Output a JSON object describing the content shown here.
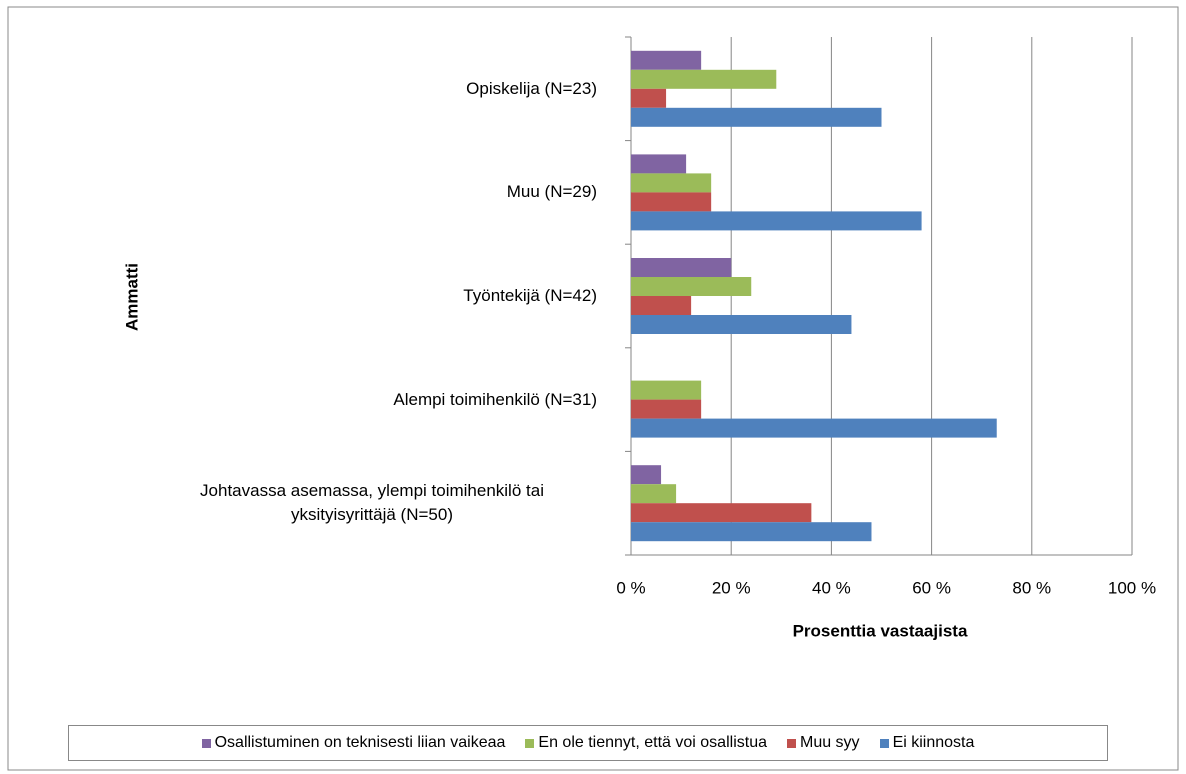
{
  "chart_data": {
    "type": "hbar",
    "y_label": "Ammatti",
    "x_label": "Prosenttia vastaajista",
    "categories": [
      "Opiskelija (N=23)",
      "Muu (N=29)",
      "Työntekijä (N=42)",
      "Alempi toimihenkilö (N=31)",
      "Johtavassa asemassa, ylempi toimihenkilö tai yksityisyrittäjä (N=50)"
    ],
    "series": [
      {
        "name": "Osallistuminen on teknisesti liian vaikeaa",
        "color": "#8064a2",
        "values": [
          14,
          11,
          20,
          0,
          6
        ]
      },
      {
        "name": "En ole tiennyt, että voi osallistua",
        "color": "#9bbb59",
        "values": [
          29,
          16,
          24,
          14,
          9
        ]
      },
      {
        "name": "Muu syy",
        "color": "#c0504d",
        "values": [
          7,
          16,
          12,
          14,
          36
        ]
      },
      {
        "name": "Ei kiinnosta",
        "color": "#4f81bd",
        "values": [
          50,
          58,
          44,
          73,
          48
        ]
      }
    ],
    "xlim": [
      0,
      100
    ],
    "xticks": [
      {
        "value": 0,
        "label": "0 %"
      },
      {
        "value": 20,
        "label": "20 %"
      },
      {
        "value": 40,
        "label": "40 %"
      },
      {
        "value": 60,
        "label": "60 %"
      },
      {
        "value": 80,
        "label": "80 %"
      },
      {
        "value": 100,
        "label": "100 %"
      }
    ],
    "grid": true,
    "legend": "bottom"
  }
}
